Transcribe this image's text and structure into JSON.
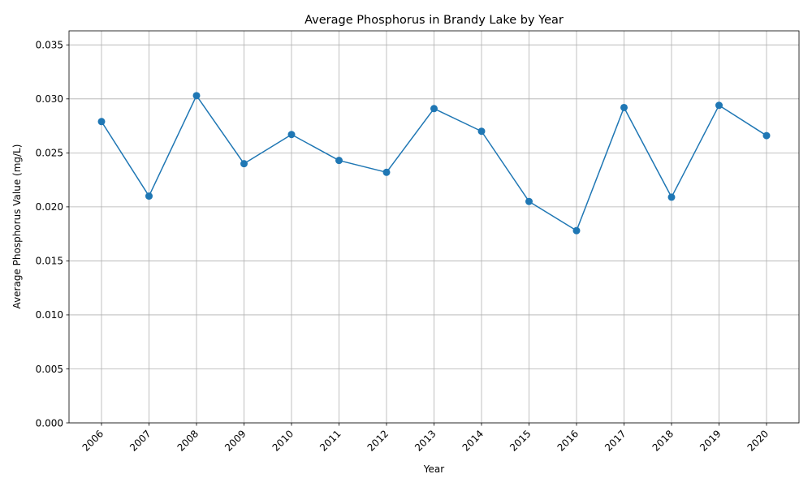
{
  "chart_data": {
    "type": "line",
    "title": "Average Phosphorus in Brandy Lake by Year",
    "xlabel": "Year",
    "ylabel": "Average Phosphorus Value (mg/L)",
    "categories": [
      "2006",
      "2007",
      "2008",
      "2009",
      "2010",
      "2011",
      "2012",
      "2013",
      "2014",
      "2015",
      "2016",
      "2017",
      "2018",
      "2019",
      "2020"
    ],
    "values": [
      0.0279,
      0.021,
      0.0303,
      0.024,
      0.0267,
      0.0243,
      0.0232,
      0.0291,
      0.027,
      0.0205,
      0.0178,
      0.0292,
      0.0209,
      0.0294,
      0.0266
    ],
    "ylim": [
      0,
      0.0363
    ],
    "yticks": [
      "0.000",
      "0.005",
      "0.010",
      "0.015",
      "0.020",
      "0.025",
      "0.030",
      "0.035"
    ],
    "grid": true,
    "line_color": "#1f77b4",
    "marker": "circle"
  }
}
